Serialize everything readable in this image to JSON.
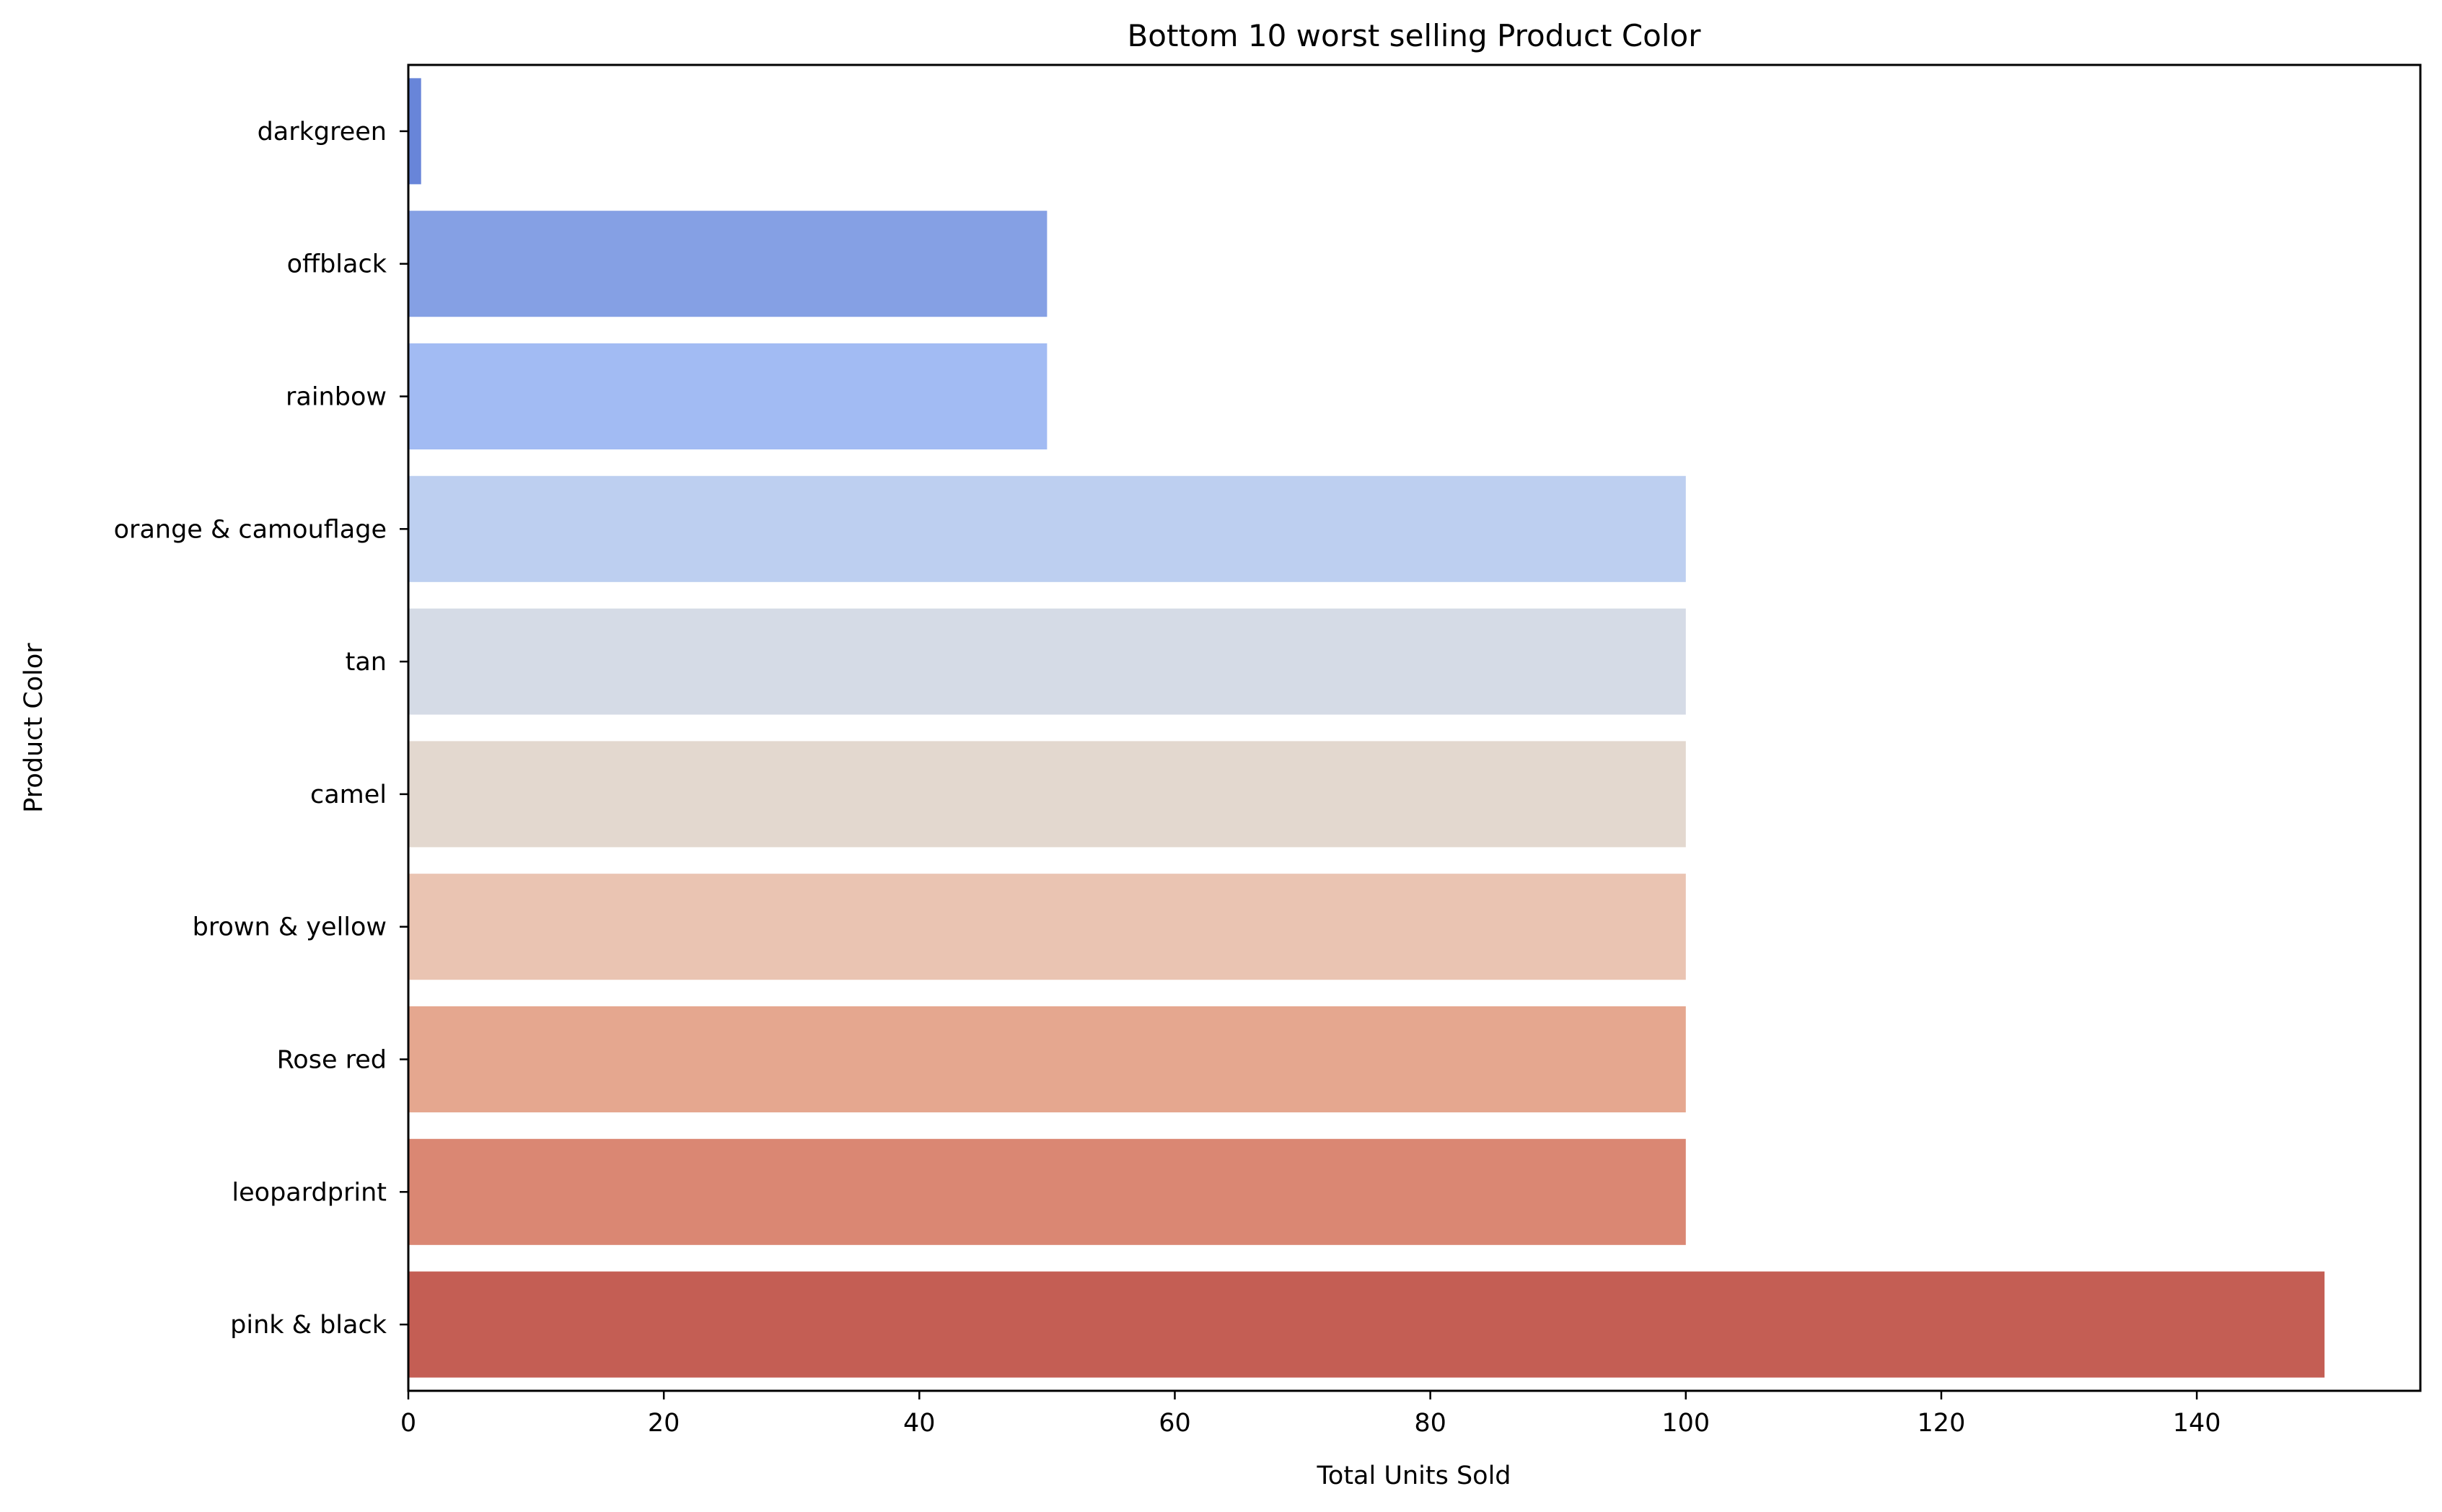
{
  "chart_data": {
    "type": "bar",
    "orientation": "horizontal",
    "title": "Bottom 10 worst selling Product Color",
    "xlabel": "Total Units Sold",
    "ylabel": "Product Color",
    "categories": [
      "darkgreen",
      "offblack",
      "rainbow",
      "orange & camouflage",
      "tan",
      "camel",
      "brown & yellow",
      "Rose red",
      "leopardprint",
      "pink & black"
    ],
    "values": [
      1,
      50,
      50,
      100,
      100,
      100,
      100,
      100,
      100,
      150
    ],
    "colors": [
      "#6885d9",
      "#85a0e4",
      "#a2bbf3",
      "#bdcff0",
      "#d5dbe6",
      "#e3d8cf",
      "#eac4b2",
      "#e5a78f",
      "#da8773",
      "#c45e54"
    ],
    "xlim": [
      0,
      157.5
    ],
    "xticks": [
      0,
      20,
      40,
      60,
      80,
      100,
      120,
      140
    ],
    "grid": false,
    "legend": "none"
  }
}
